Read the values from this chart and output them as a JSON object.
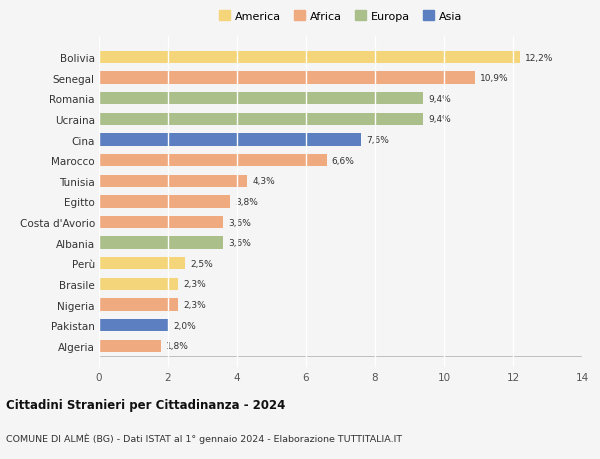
{
  "countries": [
    "Bolivia",
    "Senegal",
    "Romania",
    "Ucraina",
    "Cina",
    "Marocco",
    "Tunisia",
    "Egitto",
    "Costa d'Avorio",
    "Albania",
    "Perù",
    "Brasile",
    "Nigeria",
    "Pakistan",
    "Algeria"
  ],
  "values": [
    12.2,
    10.9,
    9.4,
    9.4,
    7.6,
    6.6,
    4.3,
    3.8,
    3.6,
    3.6,
    2.5,
    2.3,
    2.3,
    2.0,
    1.8
  ],
  "labels": [
    "12,2%",
    "10,9%",
    "9,4%",
    "9,4%",
    "7,6%",
    "6,6%",
    "4,3%",
    "3,8%",
    "3,6%",
    "3,6%",
    "2,5%",
    "2,3%",
    "2,3%",
    "2,0%",
    "1,8%"
  ],
  "continents": [
    "America",
    "Africa",
    "Europa",
    "Europa",
    "Asia",
    "Africa",
    "Africa",
    "Africa",
    "Africa",
    "Europa",
    "America",
    "America",
    "Africa",
    "Asia",
    "Africa"
  ],
  "colors": {
    "America": "#F5D57A",
    "Africa": "#F0AA80",
    "Europa": "#AABF8A",
    "Asia": "#5B7FC0"
  },
  "legend_order": [
    "America",
    "Africa",
    "Europa",
    "Asia"
  ],
  "xlim": [
    0,
    14
  ],
  "xticks": [
    0,
    2,
    4,
    6,
    8,
    10,
    12,
    14
  ],
  "title": "Cittadini Stranieri per Cittadinanza - 2024",
  "subtitle": "COMUNE DI ALMÈ (BG) - Dati ISTAT al 1° gennaio 2024 - Elaborazione TUTTITALIA.IT",
  "bg_color": "#f5f5f5",
  "bar_height": 0.6
}
